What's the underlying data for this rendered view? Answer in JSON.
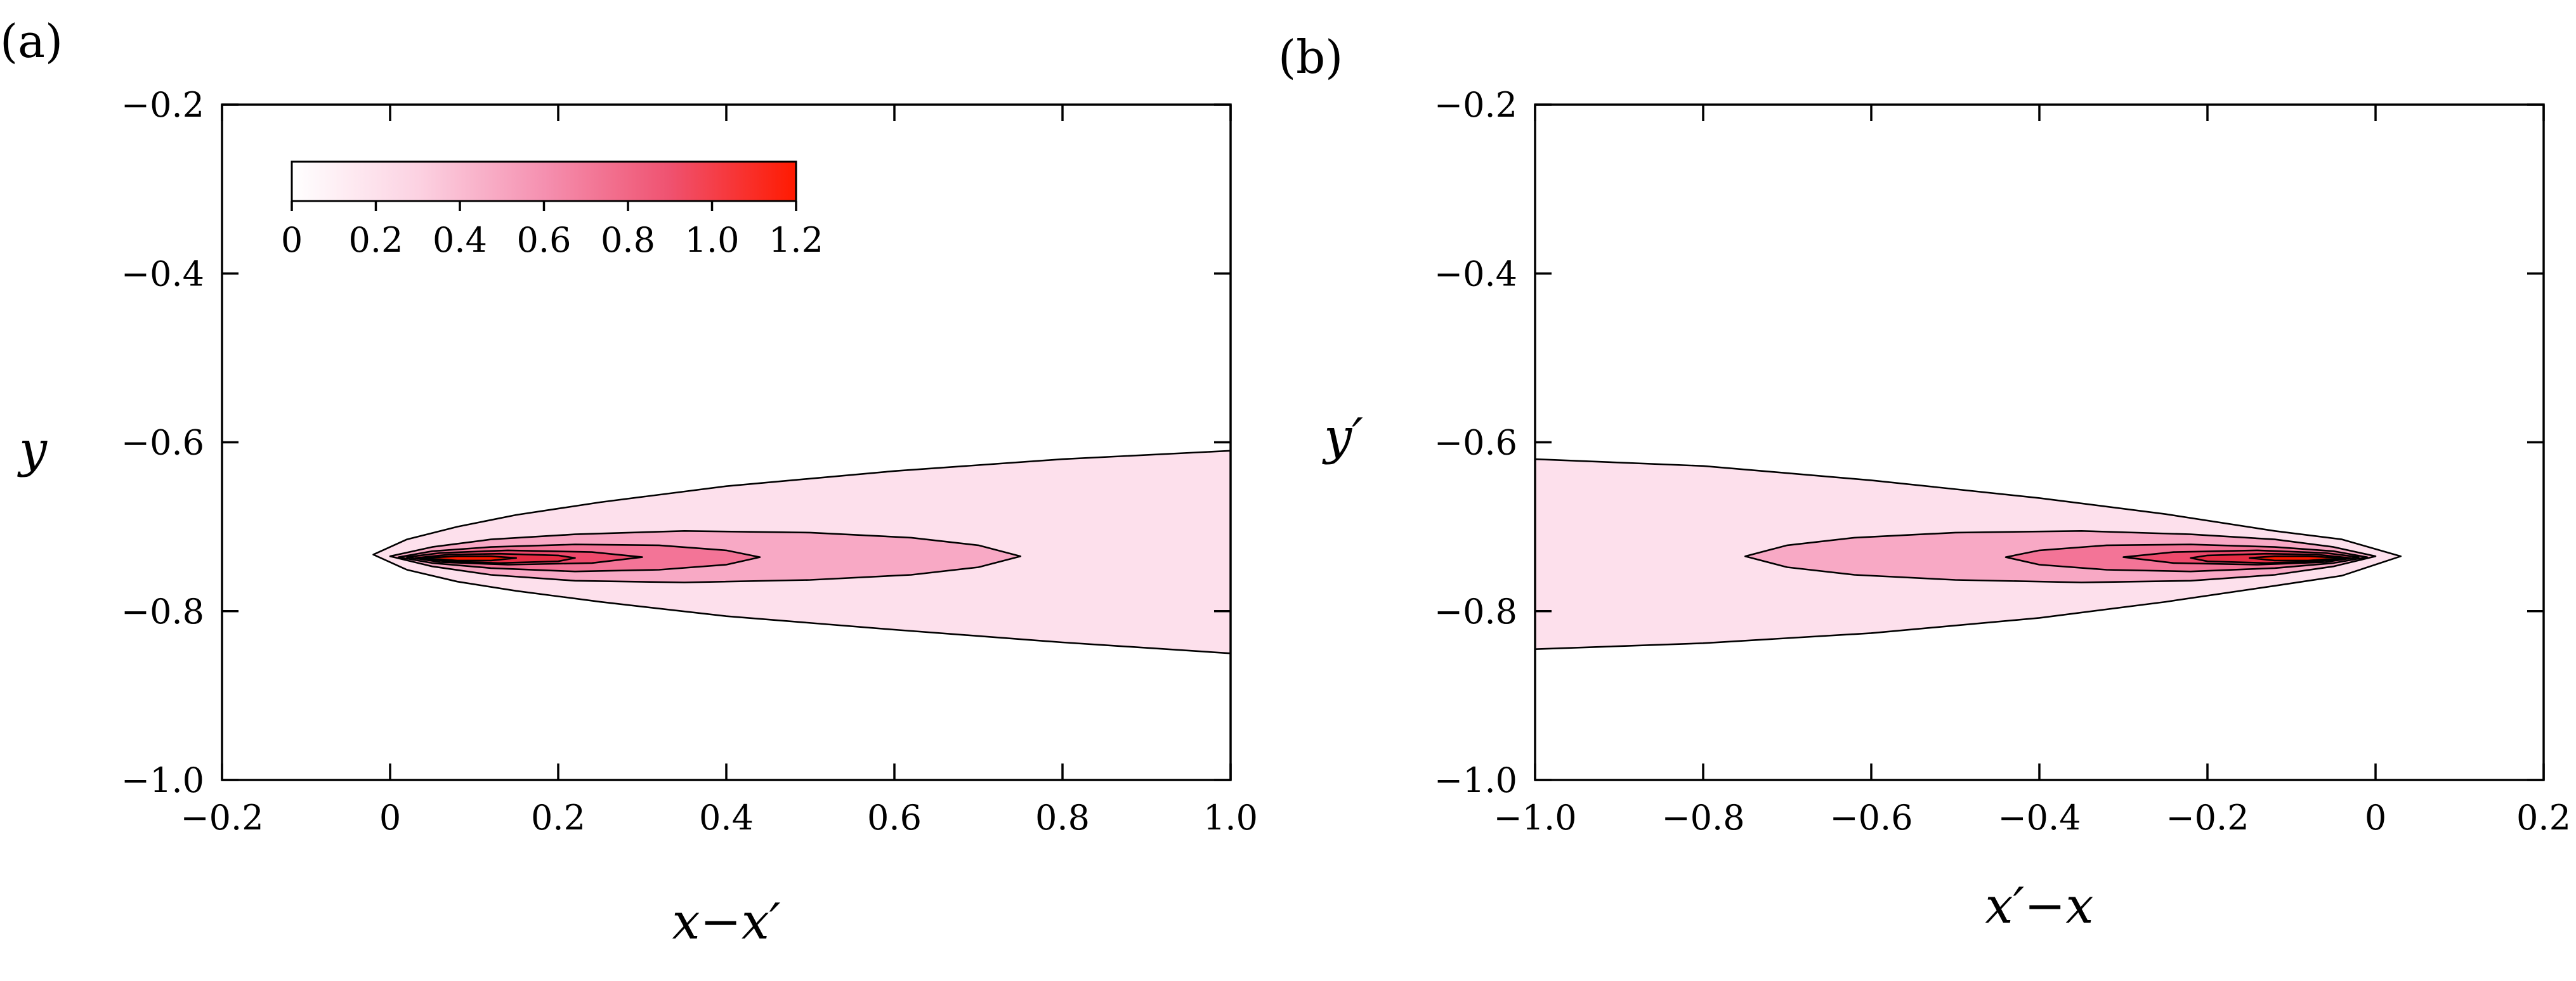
{
  "chart_data": [
    {
      "type": "contour",
      "panel_label": "(a)",
      "xlabel": "x−x′",
      "ylabel": "y",
      "xlim": [
        -0.2,
        1.0
      ],
      "ylim": [
        -1.0,
        -0.2
      ],
      "x_ticks": [
        "−0.2",
        "0",
        "0.2",
        "0.4",
        "0.6",
        "0.8",
        "1.0"
      ],
      "x_tick_values": [
        -0.2,
        0,
        0.2,
        0.4,
        0.6,
        0.8,
        1.0
      ],
      "y_ticks": [
        "−0.2",
        "−0.4",
        "−0.6",
        "−0.8",
        "−1.0"
      ],
      "y_tick_values": [
        -0.2,
        -0.4,
        -0.6,
        -0.8,
        -1.0
      ],
      "colorbar": {
        "min": 0,
        "max": 1.2,
        "tick_labels": [
          "0",
          "0.2",
          "0.4",
          "0.6",
          "0.8",
          "1.0",
          "1.2"
        ],
        "tick_values": [
          0,
          0.2,
          0.4,
          0.6,
          0.8,
          1.0,
          1.2
        ],
        "color_low": "#ffffff",
        "color_high": "#ff1a00"
      },
      "contour_levels": [
        {
          "level": 0.1,
          "color": "#fde0ec",
          "points": [
            [
              -0.02,
              -0.733
            ],
            [
              0.02,
              -0.715
            ],
            [
              0.08,
              -0.7
            ],
            [
              0.15,
              -0.686
            ],
            [
              0.25,
              -0.671
            ],
            [
              0.4,
              -0.652
            ],
            [
              0.6,
              -0.634
            ],
            [
              0.8,
              -0.62
            ],
            [
              1.0,
              -0.61
            ],
            [
              1.0,
              -0.85
            ],
            [
              0.8,
              -0.837
            ],
            [
              0.6,
              -0.822
            ],
            [
              0.4,
              -0.806
            ],
            [
              0.25,
              -0.789
            ],
            [
              0.15,
              -0.776
            ],
            [
              0.08,
              -0.765
            ],
            [
              0.02,
              -0.751
            ]
          ]
        },
        {
          "level": 0.3,
          "color": "#f8a9c5",
          "points": [
            [
              0.0,
              -0.735
            ],
            [
              0.05,
              -0.724
            ],
            [
              0.12,
              -0.715
            ],
            [
              0.22,
              -0.709
            ],
            [
              0.35,
              -0.705
            ],
            [
              0.5,
              -0.707
            ],
            [
              0.62,
              -0.713
            ],
            [
              0.7,
              -0.722
            ],
            [
              0.75,
              -0.735
            ],
            [
              0.7,
              -0.748
            ],
            [
              0.62,
              -0.757
            ],
            [
              0.5,
              -0.763
            ],
            [
              0.35,
              -0.766
            ],
            [
              0.22,
              -0.764
            ],
            [
              0.12,
              -0.757
            ],
            [
              0.05,
              -0.747
            ]
          ]
        },
        {
          "level": 0.5,
          "color": "#f37497",
          "points": [
            [
              0.01,
              -0.736
            ],
            [
              0.05,
              -0.729
            ],
            [
              0.12,
              -0.724
            ],
            [
              0.22,
              -0.721
            ],
            [
              0.32,
              -0.722
            ],
            [
              0.4,
              -0.728
            ],
            [
              0.44,
              -0.736
            ],
            [
              0.4,
              -0.745
            ],
            [
              0.32,
              -0.751
            ],
            [
              0.22,
              -0.753
            ],
            [
              0.12,
              -0.749
            ],
            [
              0.05,
              -0.743
            ]
          ]
        },
        {
          "level": 0.7,
          "color": "#ee4a6c",
          "points": [
            [
              0.02,
              -0.736
            ],
            [
              0.06,
              -0.731
            ],
            [
              0.14,
              -0.728
            ],
            [
              0.24,
              -0.73
            ],
            [
              0.3,
              -0.736
            ],
            [
              0.24,
              -0.743
            ],
            [
              0.14,
              -0.745
            ],
            [
              0.06,
              -0.742
            ]
          ]
        },
        {
          "level": 0.9,
          "color": "#e62c44",
          "points": [
            [
              0.03,
              -0.737
            ],
            [
              0.07,
              -0.733
            ],
            [
              0.13,
              -0.732
            ],
            [
              0.2,
              -0.734
            ],
            [
              0.22,
              -0.737
            ],
            [
              0.2,
              -0.741
            ],
            [
              0.13,
              -0.743
            ],
            [
              0.07,
              -0.741
            ]
          ]
        },
        {
          "level": 1.1,
          "color": "#ff1a00",
          "points": [
            [
              0.04,
              -0.737
            ],
            [
              0.08,
              -0.735
            ],
            [
              0.12,
              -0.735
            ],
            [
              0.15,
              -0.737
            ],
            [
              0.12,
              -0.74
            ],
            [
              0.08,
              -0.74
            ]
          ]
        }
      ]
    },
    {
      "type": "contour",
      "panel_label": "(b)",
      "xlabel": "x′−x",
      "ylabel": "y′",
      "xlim": [
        -1.0,
        0.2
      ],
      "ylim": [
        -1.0,
        -0.2
      ],
      "x_ticks": [
        "−1.0",
        "−0.8",
        "−0.6",
        "−0.4",
        "−0.2",
        "0",
        "0.2"
      ],
      "x_tick_values": [
        -1.0,
        -0.8,
        -0.6,
        -0.4,
        -0.2,
        0,
        0.2
      ],
      "y_ticks": [
        "−0.2",
        "−0.4",
        "−0.6",
        "−0.8",
        "−1.0"
      ],
      "y_tick_values": [
        -0.2,
        -0.4,
        -0.6,
        -0.8,
        -1.0
      ],
      "contour_levels": [
        {
          "level": 0.1,
          "color": "#fde0ec",
          "points": [
            [
              -1.0,
              -0.62
            ],
            [
              -0.8,
              -0.628
            ],
            [
              -0.6,
              -0.645
            ],
            [
              -0.4,
              -0.666
            ],
            [
              -0.25,
              -0.685
            ],
            [
              -0.12,
              -0.705
            ],
            [
              -0.04,
              -0.715
            ],
            [
              0.03,
              -0.735
            ],
            [
              -0.04,
              -0.758
            ],
            [
              -0.12,
              -0.77
            ],
            [
              -0.25,
              -0.789
            ],
            [
              -0.4,
              -0.808
            ],
            [
              -0.6,
              -0.826
            ],
            [
              -0.8,
              -0.838
            ],
            [
              -1.0,
              -0.845
            ]
          ]
        },
        {
          "level": 0.3,
          "color": "#f8a9c5",
          "points": [
            [
              -0.75,
              -0.735
            ],
            [
              -0.7,
              -0.722
            ],
            [
              -0.62,
              -0.713
            ],
            [
              -0.5,
              -0.707
            ],
            [
              -0.35,
              -0.705
            ],
            [
              -0.22,
              -0.709
            ],
            [
              -0.12,
              -0.715
            ],
            [
              -0.05,
              -0.724
            ],
            [
              0.0,
              -0.735
            ],
            [
              -0.05,
              -0.747
            ],
            [
              -0.12,
              -0.757
            ],
            [
              -0.22,
              -0.764
            ],
            [
              -0.35,
              -0.766
            ],
            [
              -0.5,
              -0.763
            ],
            [
              -0.62,
              -0.757
            ],
            [
              -0.7,
              -0.748
            ]
          ]
        },
        {
          "level": 0.5,
          "color": "#f37497",
          "points": [
            [
              -0.44,
              -0.736
            ],
            [
              -0.4,
              -0.728
            ],
            [
              -0.32,
              -0.722
            ],
            [
              -0.22,
              -0.721
            ],
            [
              -0.12,
              -0.724
            ],
            [
              -0.05,
              -0.729
            ],
            [
              -0.01,
              -0.736
            ],
            [
              -0.05,
              -0.743
            ],
            [
              -0.12,
              -0.749
            ],
            [
              -0.22,
              -0.753
            ],
            [
              -0.32,
              -0.751
            ],
            [
              -0.4,
              -0.745
            ]
          ]
        },
        {
          "level": 0.7,
          "color": "#ee4a6c",
          "points": [
            [
              -0.3,
              -0.736
            ],
            [
              -0.24,
              -0.73
            ],
            [
              -0.14,
              -0.728
            ],
            [
              -0.06,
              -0.731
            ],
            [
              -0.02,
              -0.736
            ],
            [
              -0.06,
              -0.742
            ],
            [
              -0.14,
              -0.745
            ],
            [
              -0.24,
              -0.743
            ]
          ]
        },
        {
          "level": 0.9,
          "color": "#e62c44",
          "points": [
            [
              -0.22,
              -0.737
            ],
            [
              -0.2,
              -0.734
            ],
            [
              -0.13,
              -0.732
            ],
            [
              -0.07,
              -0.733
            ],
            [
              -0.03,
              -0.737
            ],
            [
              -0.07,
              -0.741
            ],
            [
              -0.13,
              -0.743
            ],
            [
              -0.2,
              -0.741
            ]
          ]
        },
        {
          "level": 1.1,
          "color": "#ff1a00",
          "points": [
            [
              -0.15,
              -0.737
            ],
            [
              -0.12,
              -0.735
            ],
            [
              -0.08,
              -0.735
            ],
            [
              -0.04,
              -0.737
            ],
            [
              -0.08,
              -0.74
            ],
            [
              -0.12,
              -0.74
            ]
          ]
        }
      ]
    }
  ]
}
